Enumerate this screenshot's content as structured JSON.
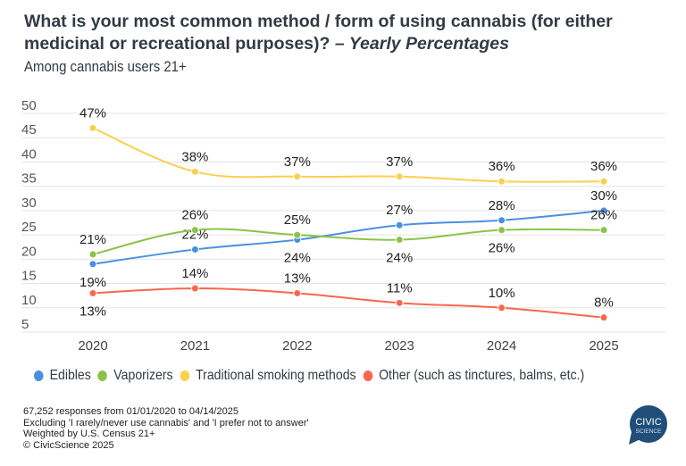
{
  "chart_data": {
    "type": "line",
    "title": "What is your most common method / form of using cannabis (for either medicinal or recreational purposes)?",
    "title_suffix": "– Yearly Percentages",
    "subtitle": "Among cannabis users 21+",
    "x": [
      "2020",
      "2021",
      "2022",
      "2023",
      "2024",
      "2025"
    ],
    "ylim": [
      5,
      50
    ],
    "yticks": [
      "50",
      "45",
      "40",
      "35",
      "30",
      "25",
      "20",
      "15",
      "10",
      "5"
    ],
    "grid": true,
    "legend_position": "bottom",
    "value_suffix": "%",
    "series": [
      {
        "name": "Edibles",
        "color": "#4a90e2",
        "values": [
          19,
          22,
          24,
          27,
          28,
          30
        ]
      },
      {
        "name": "Vaporizers",
        "color": "#8bc34a",
        "values": [
          21,
          26,
          25,
          24,
          26,
          26
        ]
      },
      {
        "name": "Traditional smoking methods",
        "color": "#fccf4f",
        "values": [
          47,
          38,
          37,
          37,
          36,
          36
        ]
      },
      {
        "name": "Other (such as tinctures, balms, etc.)",
        "color": "#f8674d",
        "values": [
          13,
          14,
          13,
          11,
          10,
          8
        ]
      }
    ]
  },
  "footer": {
    "lines": [
      "67,252 responses from 01/01/2020 to 04/14/2025",
      "Excluding 'I rarely/never use cannabis' and 'I prefer not to answer'",
      "Weighted by U.S. Census 21+",
      "© CivicScience 2025"
    ]
  },
  "logo": {
    "line1": "CIVIC",
    "line2": "SCIENCE",
    "color": "#1f4e79"
  }
}
